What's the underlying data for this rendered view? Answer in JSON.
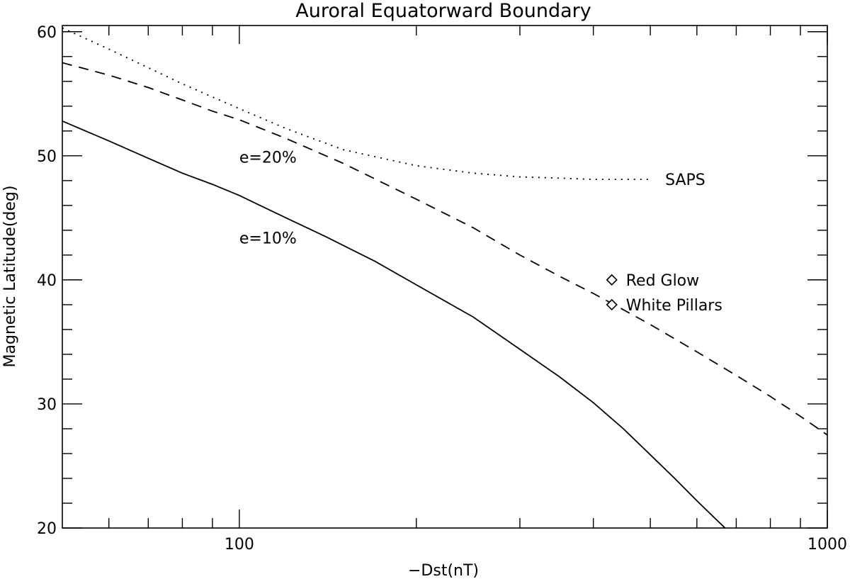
{
  "chart_data": {
    "type": "line",
    "title": "Auroral Equatorward Boundary",
    "xlabel": "−Dst(nT)",
    "ylabel": "Magnetic Latitude(deg)",
    "xscale": "log",
    "xlim": [
      50,
      1000
    ],
    "ylim": [
      20,
      60.5
    ],
    "x_tick_labels": [
      {
        "value": 100,
        "label": "100"
      },
      {
        "value": 1000,
        "label": "1000"
      }
    ],
    "y_tick_labels": [
      {
        "value": 20,
        "label": "20"
      },
      {
        "value": 30,
        "label": "30"
      },
      {
        "value": 40,
        "label": "40"
      },
      {
        "value": 50,
        "label": "50"
      },
      {
        "value": 60,
        "label": "60"
      }
    ],
    "grid": false,
    "series": [
      {
        "name": "e=10%",
        "style": "solid",
        "x": [
          50,
          60,
          70,
          80,
          90,
          100,
          120,
          140,
          170,
          200,
          250,
          300,
          350,
          400,
          450,
          500,
          550,
          600,
          650,
          670
        ],
        "y": [
          52.8,
          51.2,
          49.8,
          48.6,
          47.7,
          46.8,
          45.0,
          43.5,
          41.5,
          39.6,
          37.0,
          34.4,
          32.2,
          30.1,
          28.0,
          25.9,
          24.0,
          22.2,
          20.6,
          20.0
        ]
      },
      {
        "name": "e=20%",
        "style": "dashed",
        "x": [
          50,
          60,
          70,
          80,
          90,
          100,
          120,
          150,
          200,
          250,
          300,
          350,
          400,
          430,
          500,
          600,
          700,
          800,
          900,
          1000
        ],
        "y": [
          57.5,
          56.5,
          55.5,
          54.5,
          53.6,
          52.9,
          51.4,
          49.4,
          46.5,
          44.2,
          42.0,
          40.3,
          38.9,
          38.1,
          36.4,
          34.2,
          32.3,
          30.6,
          29.0,
          27.5
        ]
      },
      {
        "name": "SAPS",
        "style": "dotted",
        "x": [
          50,
          60,
          70,
          80,
          100,
          120,
          150,
          200,
          250,
          300,
          350,
          400,
          450,
          500
        ],
        "y": [
          60.3,
          58.6,
          57.1,
          55.8,
          53.8,
          52.2,
          50.5,
          49.2,
          48.6,
          48.3,
          48.2,
          48.1,
          48.1,
          48.1
        ]
      }
    ],
    "points": [
      {
        "label": "Red Glow",
        "x": 430,
        "y": 40.0,
        "marker": "diamond"
      },
      {
        "label": "White Pillars",
        "x": 430,
        "y": 38.0,
        "marker": "diamond"
      }
    ],
    "annotations": [
      {
        "text": "e=20%",
        "x": 100,
        "y": 49.9
      },
      {
        "text": "e=10%",
        "x": 100,
        "y": 43.4
      },
      {
        "text": "SAPS",
        "x": 530,
        "y": 48.1
      }
    ]
  }
}
